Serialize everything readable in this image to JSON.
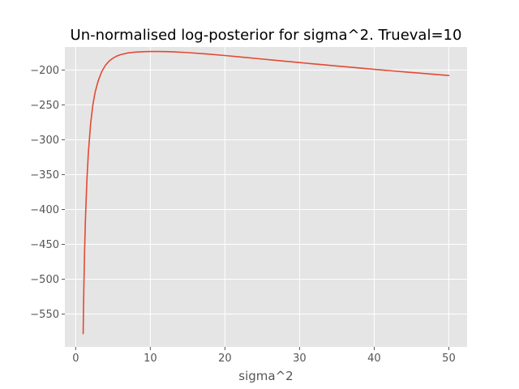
{
  "chart_data": {
    "type": "line",
    "title": "Un-normalised log-posterior for sigma^2. Trueval=10",
    "xlabel": "sigma^2",
    "ylabel": "",
    "xlim": [
      -1.45,
      52.45
    ],
    "ylim": [
      -597,
      -167
    ],
    "x_ticks": [
      0,
      10,
      20,
      30,
      40,
      50
    ],
    "x_tick_labels": [
      "0",
      "10",
      "20",
      "30",
      "40",
      "50"
    ],
    "y_ticks": [
      -550,
      -500,
      -450,
      -400,
      -350,
      -300,
      -250,
      -200
    ],
    "y_tick_labels": [
      "−550",
      "−500",
      "−450",
      "−400",
      "−350",
      "−300",
      "−250",
      "−200"
    ],
    "grid": true,
    "style": "ggplot",
    "colors": {
      "line": "#E24A33",
      "axes_background": "#E5E5E5",
      "grid": "#FFFFFF",
      "tick_text": "#555555"
    },
    "series": [
      {
        "x": [
          1.0,
          1.05,
          1.1,
          1.2,
          1.3,
          1.5,
          1.7,
          2.0,
          2.3,
          2.6,
          3.0,
          3.5,
          4.0,
          4.5,
          5.0,
          5.5,
          6.0,
          7.0,
          8.0,
          9.0,
          10.0,
          11.0,
          12.0,
          13.0,
          15.0,
          17.5,
          20.0,
          22.5,
          25.0,
          27.5,
          30.0,
          32.5,
          35.0,
          37.5,
          40.0,
          42.5,
          45.0,
          47.5,
          50.0
        ],
        "y": [
          -578,
          -540,
          -508,
          -456,
          -416,
          -358,
          -318,
          -277,
          -250,
          -232,
          -216,
          -202,
          -193,
          -187,
          -183,
          -180,
          -178,
          -175.5,
          -174.3,
          -173.7,
          -173.5,
          -173.5,
          -173.6,
          -173.9,
          -175.0,
          -177.0,
          -179.2,
          -181.8,
          -184.3,
          -186.8,
          -189.3,
          -191.8,
          -194.2,
          -196.6,
          -199.0,
          -201.3,
          -203.5,
          -205.7,
          -207.9
        ]
      }
    ]
  }
}
